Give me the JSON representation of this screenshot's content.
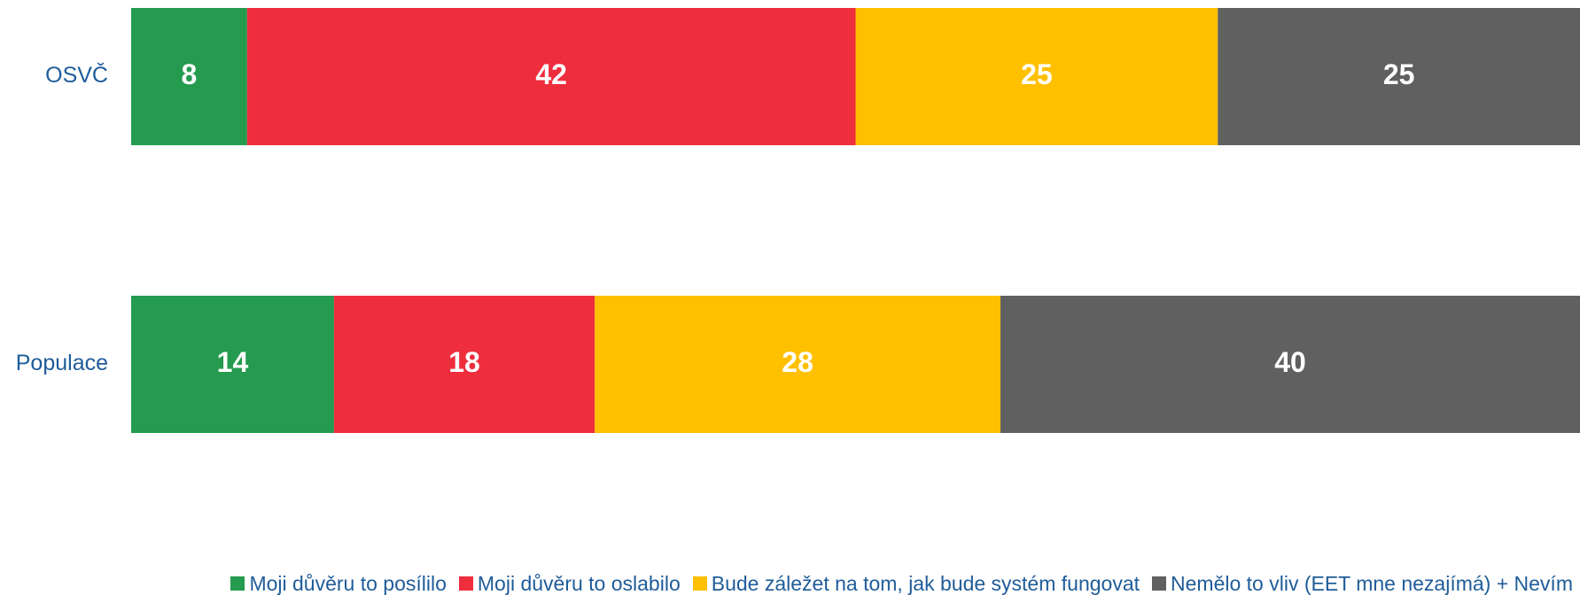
{
  "chart_data": {
    "type": "stacked-bar-horizontal",
    "categories": [
      "OSVČ",
      "Populace"
    ],
    "series": [
      {
        "name": "Moji důvěru to posílilo",
        "color": "#249b4f",
        "values": [
          8,
          14
        ]
      },
      {
        "name": "Moji důvěru to oslabilo",
        "color": "#ee2d3d",
        "values": [
          42,
          18
        ]
      },
      {
        "name": "Bude záležet na tom, jak bude systém fungovat",
        "color": "#ffc000",
        "values": [
          25,
          28
        ]
      },
      {
        "name": "Nemělo to vliv (EET mne nezajímá) + Nevím",
        "color": "#606060",
        "values": [
          25,
          40
        ]
      }
    ],
    "xlim": [
      0,
      100
    ],
    "legend": "bottom"
  }
}
